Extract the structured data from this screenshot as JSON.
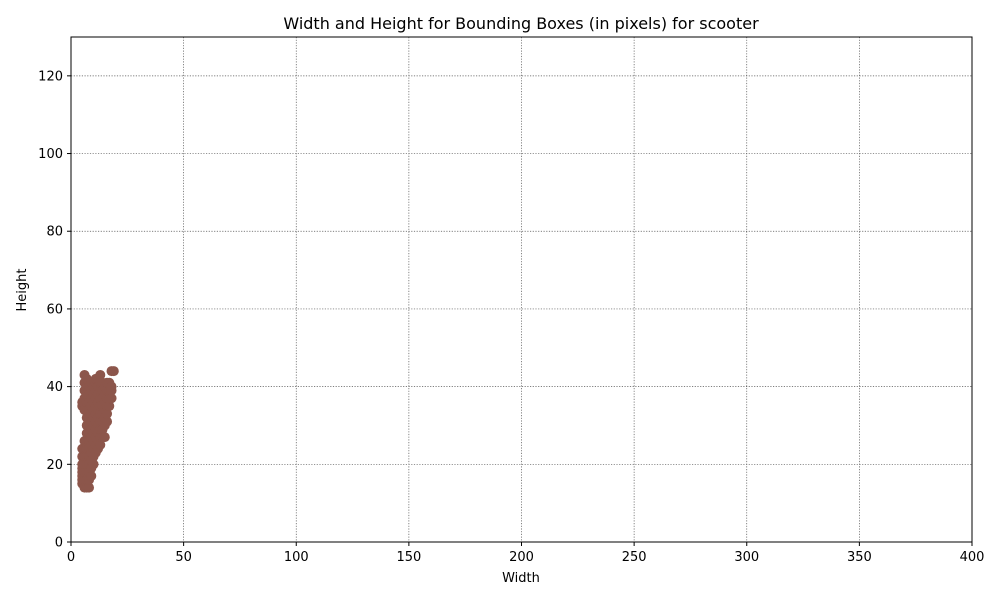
{
  "chart_data": {
    "type": "scatter",
    "title": "Width and Height for Bounding Boxes (in pixels) for scooter",
    "xlabel": "Width",
    "ylabel": "Height",
    "xlim": [
      0,
      400
    ],
    "ylim": [
      0,
      130
    ],
    "xticks": [
      0,
      50,
      100,
      150,
      200,
      250,
      300,
      350,
      400
    ],
    "yticks": [
      0,
      20,
      40,
      60,
      80,
      100,
      120
    ],
    "grid": true,
    "point_color": "#8c564b",
    "series": [
      {
        "points": [
          [
            5,
            15
          ],
          [
            5,
            16
          ],
          [
            5,
            17
          ],
          [
            5,
            18
          ],
          [
            5,
            19
          ],
          [
            5,
            20
          ],
          [
            5,
            22
          ],
          [
            5,
            24
          ],
          [
            5,
            35
          ],
          [
            5,
            36
          ],
          [
            6,
            14
          ],
          [
            6,
            16
          ],
          [
            6,
            18
          ],
          [
            6,
            20
          ],
          [
            6,
            22
          ],
          [
            6,
            24
          ],
          [
            6,
            26
          ],
          [
            6,
            34
          ],
          [
            6,
            37
          ],
          [
            6,
            39
          ],
          [
            6,
            41
          ],
          [
            6,
            43
          ],
          [
            7,
            14
          ],
          [
            7,
            16
          ],
          [
            7,
            18
          ],
          [
            7,
            20
          ],
          [
            7,
            22
          ],
          [
            7,
            24
          ],
          [
            7,
            26
          ],
          [
            7,
            28
          ],
          [
            7,
            30
          ],
          [
            7,
            32
          ],
          [
            7,
            34
          ],
          [
            7,
            36
          ],
          [
            7,
            38
          ],
          [
            7,
            40
          ],
          [
            7,
            42
          ],
          [
            8,
            14
          ],
          [
            8,
            16
          ],
          [
            8,
            18
          ],
          [
            8,
            20
          ],
          [
            8,
            22
          ],
          [
            8,
            24
          ],
          [
            8,
            26
          ],
          [
            8,
            28
          ],
          [
            8,
            30
          ],
          [
            8,
            32
          ],
          [
            8,
            34
          ],
          [
            8,
            36
          ],
          [
            8,
            38
          ],
          [
            8,
            40
          ],
          [
            9,
            17
          ],
          [
            9,
            19
          ],
          [
            9,
            21
          ],
          [
            9,
            23
          ],
          [
            9,
            25
          ],
          [
            9,
            27
          ],
          [
            9,
            29
          ],
          [
            9,
            31
          ],
          [
            9,
            33
          ],
          [
            9,
            35
          ],
          [
            9,
            37
          ],
          [
            9,
            39
          ],
          [
            9,
            41
          ],
          [
            10,
            20
          ],
          [
            10,
            22
          ],
          [
            10,
            24
          ],
          [
            10,
            26
          ],
          [
            10,
            28
          ],
          [
            10,
            30
          ],
          [
            10,
            32
          ],
          [
            10,
            34
          ],
          [
            10,
            36
          ],
          [
            10,
            38
          ],
          [
            10,
            40
          ],
          [
            11,
            23
          ],
          [
            11,
            25
          ],
          [
            11,
            27
          ],
          [
            11,
            29
          ],
          [
            11,
            31
          ],
          [
            11,
            33
          ],
          [
            11,
            35
          ],
          [
            11,
            37
          ],
          [
            11,
            39
          ],
          [
            11,
            41
          ],
          [
            11,
            42
          ],
          [
            12,
            24
          ],
          [
            12,
            26
          ],
          [
            12,
            28
          ],
          [
            12,
            30
          ],
          [
            12,
            32
          ],
          [
            12,
            34
          ],
          [
            12,
            36
          ],
          [
            12,
            38
          ],
          [
            12,
            40
          ],
          [
            12,
            42
          ],
          [
            13,
            25
          ],
          [
            13,
            27
          ],
          [
            13,
            29
          ],
          [
            13,
            31
          ],
          [
            13,
            33
          ],
          [
            13,
            35
          ],
          [
            13,
            37
          ],
          [
            13,
            39
          ],
          [
            13,
            41
          ],
          [
            13,
            43
          ],
          [
            14,
            27
          ],
          [
            14,
            29
          ],
          [
            14,
            31
          ],
          [
            14,
            33
          ],
          [
            14,
            35
          ],
          [
            14,
            37
          ],
          [
            14,
            39
          ],
          [
            14,
            41
          ],
          [
            15,
            27
          ],
          [
            15,
            30
          ],
          [
            15,
            32
          ],
          [
            15,
            34
          ],
          [
            15,
            36
          ],
          [
            15,
            38
          ],
          [
            15,
            40
          ],
          [
            16,
            31
          ],
          [
            16,
            33
          ],
          [
            16,
            35
          ],
          [
            16,
            37
          ],
          [
            16,
            39
          ],
          [
            16,
            41
          ],
          [
            17,
            35
          ],
          [
            17,
            37
          ],
          [
            17,
            39
          ],
          [
            17,
            41
          ],
          [
            18,
            37
          ],
          [
            18,
            39
          ],
          [
            18,
            40
          ],
          [
            18,
            44
          ],
          [
            19,
            44
          ]
        ]
      }
    ]
  }
}
